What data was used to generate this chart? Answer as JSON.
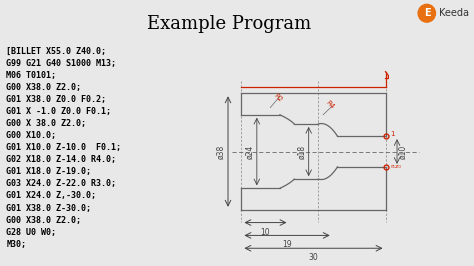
{
  "title": "Example Program",
  "title_fontsize": 13,
  "bg_color": "#e8e8e8",
  "code_lines": [
    "[BILLET X55.0 Z40.0;",
    "G99 G21 G40 S1000 M13;",
    "M06 T0101;",
    "G00 X38.0 Z2.0;",
    "G01 X38.0 Z0.0 F0.2;",
    "G01 X -1.0 Z0.0 F0.1;",
    "G00 X 38.0 Z2.0;",
    "G00 X10.0;",
    "G01 X10.0 Z-10.0  F0.1;",
    "G02 X18.0 Z-14.0 R4.0;",
    "G01 X18.0 Z-19.0;",
    "G03 X24.0 Z-22.0 R3.0;",
    "G01 X24.0 Z,-30.0;",
    "G01 X38.0 Z-30.0;",
    "G00 X38.0 Z2.0;",
    "G28 U0 W0;",
    "M30;"
  ],
  "line_color": "#666666",
  "red_color": "#cc2200",
  "dim_color": "#444444",
  "white_bg": "#ffffff"
}
